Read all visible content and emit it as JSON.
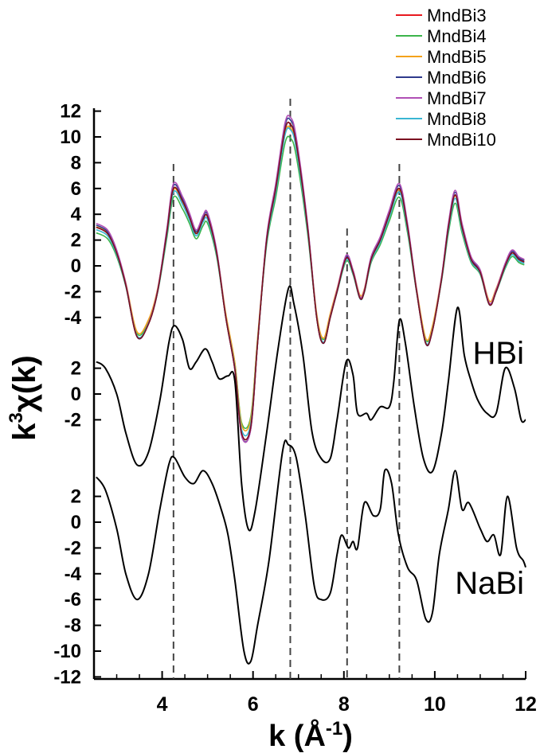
{
  "chart_data": {
    "type": "line",
    "xlabel": "k (Å",
    "xlabel_sup": "-1",
    "xlabel_end": ")",
    "ylabel": "k",
    "ylabel_sup": "3",
    "ylabel_end": "χ(k)",
    "xlim": [
      2.5,
      12
    ],
    "x_ticks": [
      "4",
      "6",
      "8",
      "10",
      "12"
    ],
    "reference_lines_x": [
      4.25,
      6.82,
      8.07,
      9.22
    ],
    "panels": [
      {
        "id": "top",
        "y_ticks": [
          "12",
          "10",
          "8",
          "6",
          "4",
          "2",
          "0",
          "-2",
          "-4"
        ]
      },
      {
        "id": "HBi",
        "label": "HBi",
        "y_ticks": [
          "2",
          "0",
          "-2"
        ]
      },
      {
        "id": "NaBi",
        "label": "NaBi",
        "y_ticks": [
          "2",
          "0",
          "-2",
          "-4",
          "-6",
          "-8",
          "-10",
          "-12"
        ]
      }
    ],
    "series": [
      {
        "name": "MndBi3",
        "panel": "top",
        "color": "#e8191f",
        "dy": 0,
        "amp": 1.0
      },
      {
        "name": "MndBi4",
        "panel": "top",
        "color": "#3cb44b",
        "dy": -0.2,
        "amp": 0.92
      },
      {
        "name": "MndBi5",
        "panel": "top",
        "color": "#f4a21b",
        "dy": 0.15,
        "amp": 0.96
      },
      {
        "name": "MndBi6",
        "panel": "top",
        "color": "#2e3a8c",
        "dy": 0.1,
        "amp": 1.02
      },
      {
        "name": "MndBi7",
        "panel": "top",
        "color": "#b04fb5",
        "dy": 0.2,
        "amp": 1.03
      },
      {
        "name": "MndBi8",
        "panel": "top",
        "color": "#39b6d3",
        "dy": -0.1,
        "amp": 0.97
      },
      {
        "name": "MndBi10",
        "panel": "top",
        "color": "#7b1020",
        "dy": 0,
        "amp": 1.0
      },
      {
        "name": "HBi",
        "panel": "HBi",
        "color": "#000000",
        "dy": 0,
        "amp": 1.0
      },
      {
        "name": "NaBi",
        "panel": "NaBi",
        "color": "#000000",
        "dy": 0,
        "amp": 1.0
      }
    ],
    "base_curves": {
      "top": [
        [
          2.55,
          3.0
        ],
        [
          2.8,
          2.5
        ],
        [
          3.0,
          1.0
        ],
        [
          3.2,
          -1.5
        ],
        [
          3.45,
          -5.5
        ],
        [
          3.7,
          -4.5
        ],
        [
          3.9,
          -2.0
        ],
        [
          4.1,
          2.5
        ],
        [
          4.25,
          6.0
        ],
        [
          4.45,
          5.0
        ],
        [
          4.6,
          3.8
        ],
        [
          4.75,
          2.5
        ],
        [
          4.9,
          3.6
        ],
        [
          5.0,
          3.8
        ],
        [
          5.2,
          1.0
        ],
        [
          5.4,
          -4.0
        ],
        [
          5.6,
          -8.0
        ],
        [
          5.75,
          -13.0
        ],
        [
          5.95,
          -12.5
        ],
        [
          6.1,
          -6.0
        ],
        [
          6.3,
          2.0
        ],
        [
          6.5,
          6.0
        ],
        [
          6.7,
          10.5
        ],
        [
          6.82,
          11.0
        ],
        [
          6.95,
          9.5
        ],
        [
          7.2,
          3.0
        ],
        [
          7.4,
          -4.0
        ],
        [
          7.55,
          -6.0
        ],
        [
          7.7,
          -4.0
        ],
        [
          7.85,
          -2.0
        ],
        [
          8.05,
          0.6
        ],
        [
          8.2,
          -0.5
        ],
        [
          8.35,
          -2.5
        ],
        [
          8.45,
          -2.0
        ],
        [
          8.6,
          0.5
        ],
        [
          8.8,
          2.0
        ],
        [
          9.0,
          4.0
        ],
        [
          9.22,
          6.0
        ],
        [
          9.4,
          3.0
        ],
        [
          9.6,
          -2.0
        ],
        [
          9.8,
          -6.0
        ],
        [
          9.95,
          -5.0
        ],
        [
          10.15,
          -1.0
        ],
        [
          10.3,
          3.0
        ],
        [
          10.45,
          5.5
        ],
        [
          10.6,
          3.0
        ],
        [
          10.8,
          0.5
        ],
        [
          11.0,
          -0.5
        ],
        [
          11.2,
          -3.0
        ],
        [
          11.35,
          -2.0
        ],
        [
          11.55,
          0.0
        ],
        [
          11.7,
          1.0
        ],
        [
          11.85,
          0.5
        ],
        [
          11.97,
          0.3
        ]
      ],
      "HBi": [
        [
          2.55,
          2.5
        ],
        [
          2.75,
          2.0
        ],
        [
          3.0,
          0.0
        ],
        [
          3.2,
          -3.0
        ],
        [
          3.45,
          -5.5
        ],
        [
          3.7,
          -4.5
        ],
        [
          3.95,
          -0.5
        ],
        [
          4.15,
          4.0
        ],
        [
          4.27,
          5.3
        ],
        [
          4.45,
          4.2
        ],
        [
          4.6,
          2.0
        ],
        [
          4.75,
          2.5
        ],
        [
          4.95,
          3.5
        ],
        [
          5.1,
          2.5
        ],
        [
          5.25,
          1.2
        ],
        [
          5.45,
          1.4
        ],
        [
          5.6,
          1.0
        ],
        [
          5.75,
          -7.0
        ],
        [
          5.9,
          -10.5
        ],
        [
          6.05,
          -9.0
        ],
        [
          6.3,
          -3.0
        ],
        [
          6.55,
          3.5
        ],
        [
          6.78,
          8.2
        ],
        [
          6.9,
          7.0
        ],
        [
          7.1,
          3.0
        ],
        [
          7.3,
          -3.0
        ],
        [
          7.5,
          -5.0
        ],
        [
          7.7,
          -5.0
        ],
        [
          7.85,
          -2.0
        ],
        [
          8.05,
          2.5
        ],
        [
          8.2,
          1.5
        ],
        [
          8.3,
          -1.5
        ],
        [
          8.5,
          -1.5
        ],
        [
          8.6,
          -2.0
        ],
        [
          8.8,
          -1.0
        ],
        [
          9.0,
          -1.0
        ],
        [
          9.1,
          1.0
        ],
        [
          9.22,
          5.7
        ],
        [
          9.35,
          4.0
        ],
        [
          9.55,
          -1.0
        ],
        [
          9.75,
          -5.0
        ],
        [
          9.95,
          -6.0
        ],
        [
          10.15,
          -3.0
        ],
        [
          10.3,
          1.0
        ],
        [
          10.5,
          6.7
        ],
        [
          10.65,
          3.0
        ],
        [
          10.8,
          1.0
        ],
        [
          10.95,
          -0.5
        ],
        [
          11.15,
          -1.5
        ],
        [
          11.35,
          -1.5
        ],
        [
          11.55,
          2.0
        ],
        [
          11.75,
          0.5
        ],
        [
          11.9,
          -2.0
        ],
        [
          12.0,
          -2.0
        ]
      ],
      "NaBi": [
        [
          2.55,
          3.5
        ],
        [
          2.75,
          2.5
        ],
        [
          3.0,
          -0.5
        ],
        [
          3.2,
          -4.0
        ],
        [
          3.45,
          -6.0
        ],
        [
          3.7,
          -4.0
        ],
        [
          3.95,
          1.0
        ],
        [
          4.15,
          4.5
        ],
        [
          4.27,
          5.0
        ],
        [
          4.5,
          3.5
        ],
        [
          4.7,
          3.0
        ],
        [
          4.9,
          4.0
        ],
        [
          5.1,
          3.0
        ],
        [
          5.3,
          1.0
        ],
        [
          5.45,
          -1.0
        ],
        [
          5.6,
          -4.5
        ],
        [
          5.8,
          -10.0
        ],
        [
          5.95,
          -10.8
        ],
        [
          6.1,
          -8.0
        ],
        [
          6.35,
          -3.0
        ],
        [
          6.65,
          5.5
        ],
        [
          6.78,
          6.0
        ],
        [
          6.95,
          5.0
        ],
        [
          7.15,
          0.5
        ],
        [
          7.35,
          -5.0
        ],
        [
          7.5,
          -6.0
        ],
        [
          7.7,
          -5.5
        ],
        [
          7.85,
          -2.5
        ],
        [
          7.95,
          -1.0
        ],
        [
          8.1,
          -2.0
        ],
        [
          8.2,
          -1.5
        ],
        [
          8.3,
          -2.0
        ],
        [
          8.45,
          1.5
        ],
        [
          8.65,
          0.5
        ],
        [
          8.8,
          1.0
        ],
        [
          8.9,
          4.0
        ],
        [
          9.05,
          3.0
        ],
        [
          9.2,
          -1.0
        ],
        [
          9.4,
          -3.5
        ],
        [
          9.6,
          -4.5
        ],
        [
          9.8,
          -7.5
        ],
        [
          9.95,
          -7.0
        ],
        [
          10.1,
          -2.5
        ],
        [
          10.3,
          1.0
        ],
        [
          10.45,
          4.0
        ],
        [
          10.6,
          1.0
        ],
        [
          10.75,
          1.5
        ],
        [
          11.0,
          -0.5
        ],
        [
          11.15,
          -1.5
        ],
        [
          11.3,
          -1.0
        ],
        [
          11.45,
          -2.5
        ],
        [
          11.6,
          2.0
        ],
        [
          11.8,
          -2.0
        ],
        [
          11.95,
          -3.0
        ],
        [
          12.0,
          -3.5
        ]
      ]
    }
  }
}
